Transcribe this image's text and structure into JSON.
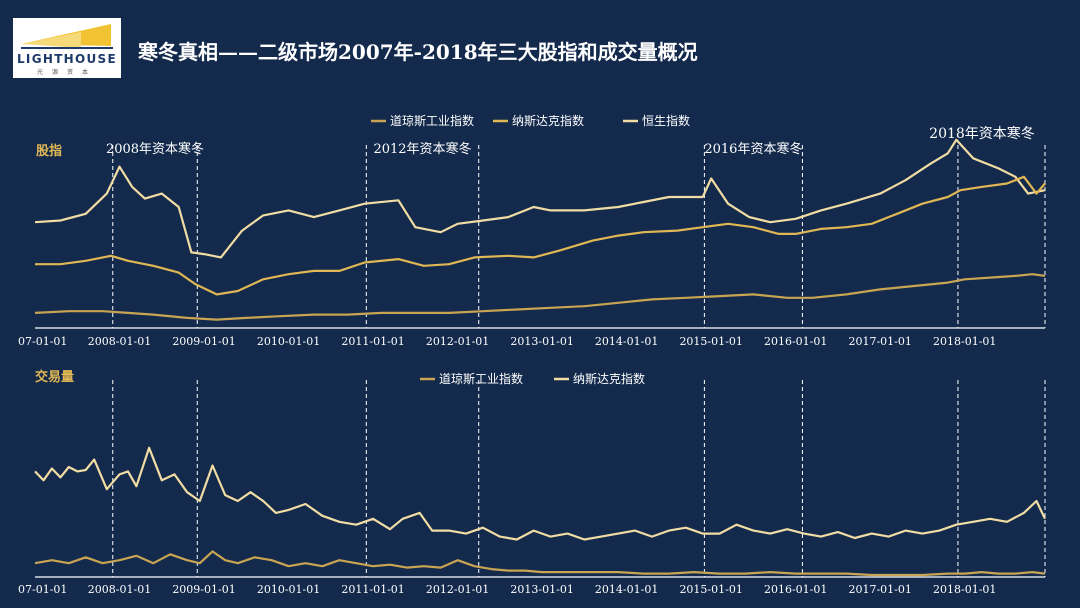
{
  "header": {
    "logo_text": "LIGHTHOUSE",
    "logo_subtext": "光源资本",
    "title": "寒冬真相——二级市场2007年-2018年三大股指和成交量概况"
  },
  "colors": {
    "background": "#132a4c",
    "dow": "#c9a452",
    "nasdaq": "#e0b754",
    "hangseng": "#f1dca4"
  },
  "chart_data": [
    {
      "type": "line",
      "title": "股指",
      "x": [
        "07-01-01",
        "2008-01-01",
        "2009-01-01",
        "2010-01-01",
        "2011-01-01",
        "2012-01-01",
        "2013-01-01",
        "2014-01-01",
        "2015-01-01",
        "2016-01-01",
        "2017-01-01",
        "2018-01-01"
      ],
      "x_start": 2007.0,
      "x_end": 2018.95,
      "ylim": [
        0,
        100
      ],
      "legend": [
        "道琼斯工业指数",
        "纳斯达克指数",
        "恒生指数"
      ],
      "legend_position": "top-center",
      "annotations": [
        {
          "label": "2008年资本寒冬",
          "range": [
            2007.92,
            2008.92
          ]
        },
        {
          "label": "2012年资本寒冬",
          "range": [
            2010.92,
            2012.25
          ]
        },
        {
          "label": "2016年资本寒冬",
          "range": [
            2014.92,
            2016.08
          ]
        },
        {
          "label": "2018年资本寒冬",
          "range": [
            2017.92,
            2018.95
          ]
        }
      ],
      "series": [
        {
          "name": "恒生指数",
          "color": "#f1dca4",
          "points": [
            [
              2007.0,
              63
            ],
            [
              2007.3,
              64
            ],
            [
              2007.6,
              68
            ],
            [
              2007.85,
              80
            ],
            [
              2008.0,
              96
            ],
            [
              2008.15,
              84
            ],
            [
              2008.3,
              77
            ],
            [
              2008.5,
              80
            ],
            [
              2008.7,
              72
            ],
            [
              2008.85,
              45
            ],
            [
              2009.0,
              44
            ],
            [
              2009.2,
              42
            ],
            [
              2009.45,
              58
            ],
            [
              2009.7,
              67
            ],
            [
              2010.0,
              70
            ],
            [
              2010.3,
              66
            ],
            [
              2010.6,
              70
            ],
            [
              2010.9,
              74
            ],
            [
              2011.3,
              76
            ],
            [
              2011.5,
              60
            ],
            [
              2011.8,
              57
            ],
            [
              2012.0,
              62
            ],
            [
              2012.3,
              64
            ],
            [
              2012.6,
              66
            ],
            [
              2012.9,
              72
            ],
            [
              2013.1,
              70
            ],
            [
              2013.5,
              70
            ],
            [
              2013.9,
              72
            ],
            [
              2014.2,
              75
            ],
            [
              2014.5,
              78
            ],
            [
              2014.9,
              78
            ],
            [
              2015.0,
              89
            ],
            [
              2015.2,
              74
            ],
            [
              2015.45,
              66
            ],
            [
              2015.7,
              63
            ],
            [
              2016.0,
              65
            ],
            [
              2016.3,
              70
            ],
            [
              2016.6,
              74
            ],
            [
              2017.0,
              80
            ],
            [
              2017.3,
              88
            ],
            [
              2017.6,
              98
            ],
            [
              2017.8,
              104
            ],
            [
              2017.9,
              112
            ],
            [
              2018.1,
              101
            ],
            [
              2018.4,
              95
            ],
            [
              2018.6,
              90
            ],
            [
              2018.75,
              80
            ],
            [
              2018.95,
              82
            ]
          ]
        },
        {
          "name": "纳斯达克指数",
          "color": "#e0b754",
          "points": [
            [
              2007.0,
              38
            ],
            [
              2007.3,
              38
            ],
            [
              2007.6,
              40
            ],
            [
              2007.9,
              43
            ],
            [
              2008.1,
              40
            ],
            [
              2008.4,
              37
            ],
            [
              2008.7,
              33
            ],
            [
              2008.9,
              26
            ],
            [
              2009.15,
              20
            ],
            [
              2009.4,
              22
            ],
            [
              2009.7,
              29
            ],
            [
              2010.0,
              32
            ],
            [
              2010.3,
              34
            ],
            [
              2010.6,
              34
            ],
            [
              2010.9,
              39
            ],
            [
              2011.3,
              41
            ],
            [
              2011.6,
              37
            ],
            [
              2011.9,
              38
            ],
            [
              2012.2,
              42
            ],
            [
              2012.6,
              43
            ],
            [
              2012.9,
              42
            ],
            [
              2013.2,
              46
            ],
            [
              2013.6,
              52
            ],
            [
              2013.9,
              55
            ],
            [
              2014.2,
              57
            ],
            [
              2014.6,
              58
            ],
            [
              2014.9,
              60
            ],
            [
              2015.2,
              62
            ],
            [
              2015.5,
              60
            ],
            [
              2015.8,
              56
            ],
            [
              2016.0,
              56
            ],
            [
              2016.3,
              59
            ],
            [
              2016.6,
              60
            ],
            [
              2016.9,
              62
            ],
            [
              2017.2,
              68
            ],
            [
              2017.5,
              74
            ],
            [
              2017.8,
              78
            ],
            [
              2017.95,
              82
            ],
            [
              2018.2,
              84
            ],
            [
              2018.5,
              86
            ],
            [
              2018.7,
              90
            ],
            [
              2018.85,
              80
            ],
            [
              2018.95,
              86
            ]
          ]
        },
        {
          "name": "道琼斯工业指数",
          "color": "#c9a452",
          "points": [
            [
              2007.0,
              9
            ],
            [
              2007.4,
              10
            ],
            [
              2007.8,
              10
            ],
            [
              2008.1,
              9
            ],
            [
              2008.4,
              8
            ],
            [
              2008.8,
              6
            ],
            [
              2009.15,
              5
            ],
            [
              2009.5,
              6
            ],
            [
              2009.9,
              7
            ],
            [
              2010.3,
              8
            ],
            [
              2010.7,
              8
            ],
            [
              2011.1,
              9
            ],
            [
              2011.5,
              9
            ],
            [
              2011.9,
              9
            ],
            [
              2012.3,
              10
            ],
            [
              2012.7,
              11
            ],
            [
              2013.1,
              12
            ],
            [
              2013.5,
              13
            ],
            [
              2013.9,
              15
            ],
            [
              2014.3,
              17
            ],
            [
              2014.7,
              18
            ],
            [
              2015.1,
              19
            ],
            [
              2015.5,
              20
            ],
            [
              2015.9,
              18
            ],
            [
              2016.2,
              18
            ],
            [
              2016.6,
              20
            ],
            [
              2017.0,
              23
            ],
            [
              2017.4,
              25
            ],
            [
              2017.8,
              27
            ],
            [
              2018.0,
              29
            ],
            [
              2018.3,
              30
            ],
            [
              2018.6,
              31
            ],
            [
              2018.8,
              32
            ],
            [
              2018.95,
              31
            ]
          ]
        }
      ]
    },
    {
      "type": "line",
      "title": "交易量",
      "x": [
        "07-01-01",
        "2008-01-01",
        "2009-01-01",
        "2010-01-01",
        "2011-01-01",
        "2012-01-01",
        "2013-01-01",
        "2014-01-01",
        "2015-01-01",
        "2016-01-01",
        "2017-01-01",
        "2018-01-01"
      ],
      "x_start": 2007.0,
      "x_end": 2018.95,
      "ylim": [
        0,
        100
      ],
      "legend": [
        "道琼斯工业指数",
        "纳斯达克指数"
      ],
      "legend_position": "top-center",
      "series": [
        {
          "name": "纳斯达克指数",
          "color": "#f1dca4",
          "points": [
            [
              2007.0,
              72
            ],
            [
              2007.1,
              66
            ],
            [
              2007.2,
              74
            ],
            [
              2007.3,
              68
            ],
            [
              2007.4,
              75
            ],
            [
              2007.5,
              72
            ],
            [
              2007.6,
              73
            ],
            [
              2007.7,
              80
            ],
            [
              2007.85,
              60
            ],
            [
              2008.0,
              70
            ],
            [
              2008.1,
              72
            ],
            [
              2008.2,
              62
            ],
            [
              2008.35,
              88
            ],
            [
              2008.5,
              66
            ],
            [
              2008.65,
              70
            ],
            [
              2008.8,
              58
            ],
            [
              2008.95,
              52
            ],
            [
              2009.1,
              76
            ],
            [
              2009.25,
              56
            ],
            [
              2009.4,
              52
            ],
            [
              2009.55,
              58
            ],
            [
              2009.7,
              52
            ],
            [
              2009.85,
              44
            ],
            [
              2010.0,
              46
            ],
            [
              2010.2,
              50
            ],
            [
              2010.4,
              42
            ],
            [
              2010.6,
              38
            ],
            [
              2010.8,
              36
            ],
            [
              2011.0,
              40
            ],
            [
              2011.2,
              33
            ],
            [
              2011.35,
              40
            ],
            [
              2011.55,
              44
            ],
            [
              2011.7,
              32
            ],
            [
              2011.9,
              32
            ],
            [
              2012.1,
              30
            ],
            [
              2012.3,
              34
            ],
            [
              2012.5,
              28
            ],
            [
              2012.7,
              26
            ],
            [
              2012.9,
              32
            ],
            [
              2013.1,
              28
            ],
            [
              2013.3,
              30
            ],
            [
              2013.5,
              26
            ],
            [
              2013.7,
              28
            ],
            [
              2013.9,
              30
            ],
            [
              2014.1,
              32
            ],
            [
              2014.3,
              28
            ],
            [
              2014.5,
              32
            ],
            [
              2014.7,
              34
            ],
            [
              2014.9,
              30
            ],
            [
              2015.1,
              30
            ],
            [
              2015.3,
              36
            ],
            [
              2015.5,
              32
            ],
            [
              2015.7,
              30
            ],
            [
              2015.9,
              33
            ],
            [
              2016.1,
              30
            ],
            [
              2016.3,
              28
            ],
            [
              2016.5,
              31
            ],
            [
              2016.7,
              27
            ],
            [
              2016.9,
              30
            ],
            [
              2017.1,
              28
            ],
            [
              2017.3,
              32
            ],
            [
              2017.5,
              30
            ],
            [
              2017.7,
              32
            ],
            [
              2017.9,
              36
            ],
            [
              2018.1,
              38
            ],
            [
              2018.3,
              40
            ],
            [
              2018.5,
              38
            ],
            [
              2018.7,
              44
            ],
            [
              2018.85,
              52
            ],
            [
              2018.95,
              40
            ]
          ]
        },
        {
          "name": "道琼斯工业指数",
          "color": "#c9a452",
          "points": [
            [
              2007.0,
              10
            ],
            [
              2007.2,
              12
            ],
            [
              2007.4,
              10
            ],
            [
              2007.6,
              14
            ],
            [
              2007.8,
              10
            ],
            [
              2008.0,
              12
            ],
            [
              2008.2,
              15
            ],
            [
              2008.4,
              10
            ],
            [
              2008.6,
              16
            ],
            [
              2008.8,
              12
            ],
            [
              2008.95,
              10
            ],
            [
              2009.1,
              18
            ],
            [
              2009.25,
              12
            ],
            [
              2009.4,
              10
            ],
            [
              2009.6,
              14
            ],
            [
              2009.8,
              12
            ],
            [
              2010.0,
              8
            ],
            [
              2010.2,
              10
            ],
            [
              2010.4,
              8
            ],
            [
              2010.6,
              12
            ],
            [
              2010.8,
              10
            ],
            [
              2011.0,
              8
            ],
            [
              2011.2,
              9
            ],
            [
              2011.4,
              7
            ],
            [
              2011.6,
              8
            ],
            [
              2011.8,
              7
            ],
            [
              2012.0,
              12
            ],
            [
              2012.2,
              8
            ],
            [
              2012.4,
              6
            ],
            [
              2012.6,
              5
            ],
            [
              2012.8,
              5
            ],
            [
              2013.0,
              4
            ],
            [
              2013.3,
              4
            ],
            [
              2013.6,
              4
            ],
            [
              2013.9,
              4
            ],
            [
              2014.2,
              3
            ],
            [
              2014.5,
              3
            ],
            [
              2014.8,
              4
            ],
            [
              2015.1,
              3
            ],
            [
              2015.4,
              3
            ],
            [
              2015.7,
              4
            ],
            [
              2016.0,
              3
            ],
            [
              2016.3,
              3
            ],
            [
              2016.6,
              3
            ],
            [
              2016.9,
              2
            ],
            [
              2017.2,
              2
            ],
            [
              2017.5,
              2
            ],
            [
              2017.8,
              3
            ],
            [
              2018.0,
              3
            ],
            [
              2018.2,
              4
            ],
            [
              2018.4,
              3
            ],
            [
              2018.6,
              3
            ],
            [
              2018.8,
              4
            ],
            [
              2018.95,
              3
            ]
          ]
        }
      ]
    }
  ]
}
